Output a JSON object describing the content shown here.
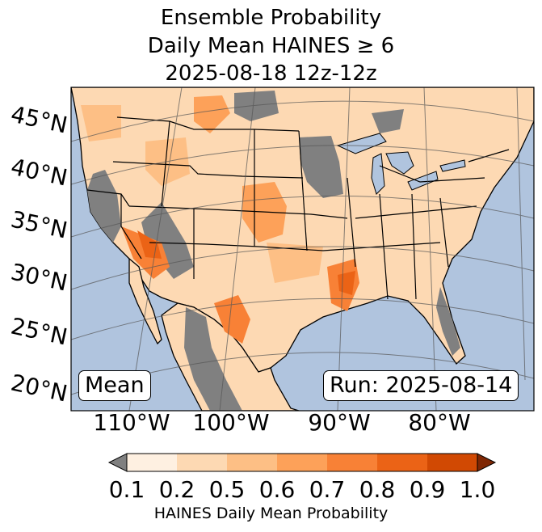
{
  "title": {
    "line1": "Ensemble Probability",
    "line2": "Daily Mean HAINES ≥ 6",
    "line3": "2025-08-18 12z-12z"
  },
  "map": {
    "lat_labels": [
      "45°N",
      "40°N",
      "35°N",
      "30°N",
      "25°N",
      "20°N"
    ],
    "lon_labels": [
      "110°W",
      "100°W",
      "90°W",
      "80°W"
    ],
    "stat_label": "Mean",
    "run_label": "Run: 2025-08-14",
    "colors": {
      "ocean": "#b0c4de",
      "masked_land": "#808080",
      "border": "#000000"
    }
  },
  "colorbar": {
    "tick_labels": [
      "0.1",
      "0.2",
      "0.5",
      "0.6",
      "0.7",
      "0.8",
      "0.9",
      "1.0"
    ],
    "colors": [
      "#fef0e1",
      "#fdd9b3",
      "#fdbf85",
      "#fda159",
      "#f88136",
      "#eb6316",
      "#d14903"
    ],
    "under_color": "#808080",
    "over_color": "#7f2704",
    "label": "HAINES Daily Mean Probability"
  }
}
